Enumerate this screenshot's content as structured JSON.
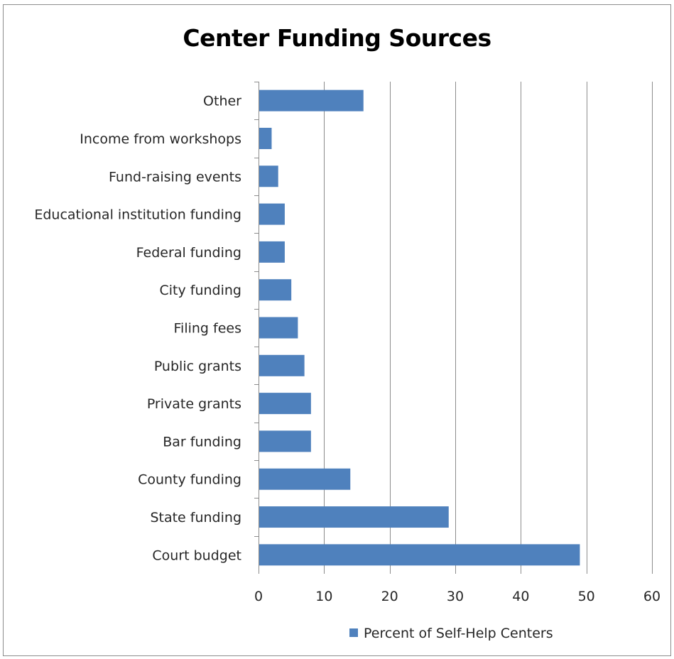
{
  "chart_data": {
    "type": "bar",
    "orientation": "horizontal",
    "title": "Center Funding Sources",
    "categories": [
      "Court budget",
      "State funding",
      "County funding",
      "Bar funding",
      "Private grants",
      "Public grants",
      "Filing fees",
      "City funding",
      "Federal funding",
      "Educational institution funding",
      "Fund-raising events",
      "Income from workshops",
      "Other"
    ],
    "series": [
      {
        "name": "Percent of Self-Help Centers",
        "color": "#4f81bd",
        "values": [
          49,
          29,
          14,
          8,
          8,
          7,
          6,
          5,
          4,
          4,
          3,
          2,
          16
        ]
      }
    ],
    "xlim": [
      0,
      60
    ],
    "xticks": [
      "0",
      "10",
      "20",
      "30",
      "40",
      "50",
      "60"
    ],
    "grid": true,
    "legend": "bottom"
  }
}
